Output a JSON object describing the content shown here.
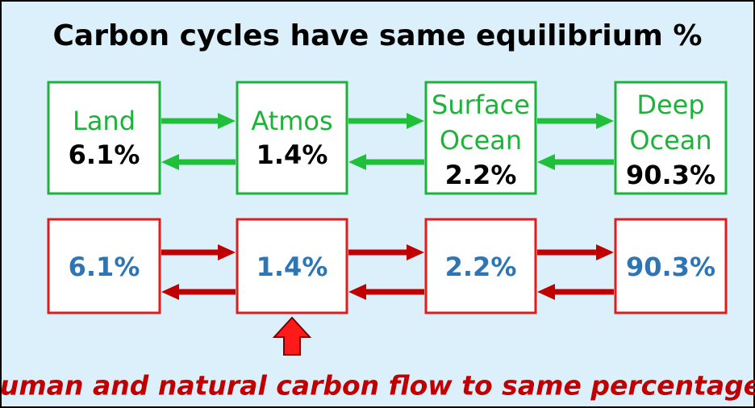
{
  "title": "Carbon cycles have same equilibrium %",
  "top_row": [
    {
      "label": [
        "Land"
      ],
      "value": "6.1%"
    },
    {
      "label": [
        "Atmos"
      ],
      "value": "1.4%"
    },
    {
      "label": [
        "Surface",
        "Ocean"
      ],
      "value": "2.2%"
    },
    {
      "label": [
        "Deep",
        "Ocean"
      ],
      "value": "90.3%"
    }
  ],
  "bottom_row": [
    "6.1%",
    "1.4%",
    "2.2%",
    "90.3%"
  ],
  "footer": "Human and natural carbon flow to same percentages"
}
